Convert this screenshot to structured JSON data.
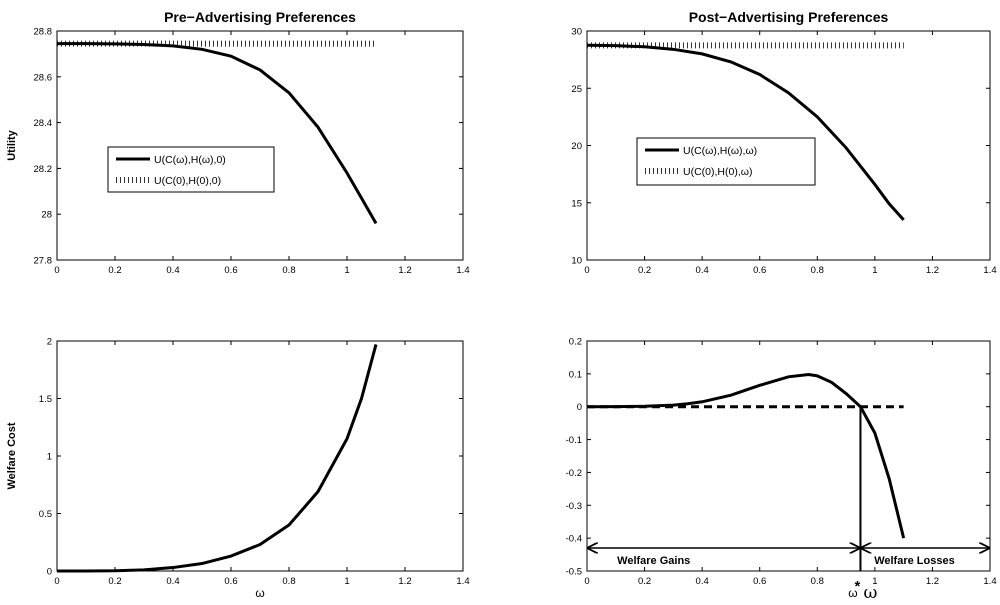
{
  "chart_data": [
    {
      "id": "p1",
      "type": "line",
      "title": "Pre−Advertising Preferences",
      "xlabel": "",
      "ylabel": "Utility",
      "xlim": [
        0,
        1.4
      ],
      "ylim": [
        27.8,
        28.8
      ],
      "xticks": [
        "0",
        "0.2",
        "0.4",
        "0.6",
        "0.8",
        "1",
        "1.2",
        "1.4"
      ],
      "yticks": [
        "27.8",
        "28",
        "28.2",
        "28.4",
        "28.6",
        "28.8"
      ],
      "grid": false,
      "legend_placement": "center-left",
      "series": [
        {
          "name": "U(C(ω),H(ω),0)",
          "style": "solid",
          "x": [
            0,
            0.1,
            0.2,
            0.3,
            0.4,
            0.5,
            0.6,
            0.7,
            0.8,
            0.9,
            1.0,
            1.05,
            1.1
          ],
          "y": [
            28.745,
            28.745,
            28.744,
            28.741,
            28.735,
            28.72,
            28.69,
            28.63,
            28.53,
            28.38,
            28.18,
            28.07,
            27.96
          ]
        },
        {
          "name": "U(C(0),H(0),0)",
          "style": "dotted",
          "x": [
            0,
            1.1
          ],
          "y": [
            28.745,
            28.745
          ]
        }
      ]
    },
    {
      "id": "p2",
      "type": "line",
      "title": "Post−Advertising Preferences",
      "xlabel": "",
      "ylabel": "",
      "xlim": [
        0,
        1.4
      ],
      "ylim": [
        10,
        30
      ],
      "xticks": [
        "0",
        "0.2",
        "0.4",
        "0.6",
        "0.8",
        "1",
        "1.2",
        "1.4"
      ],
      "yticks": [
        "10",
        "15",
        "20",
        "25",
        "30"
      ],
      "grid": false,
      "legend_placement": "center-left",
      "series": [
        {
          "name": "U(C(ω),H(ω),ω)",
          "style": "solid",
          "x": [
            0,
            0.1,
            0.2,
            0.3,
            0.4,
            0.5,
            0.6,
            0.7,
            0.8,
            0.9,
            1.0,
            1.05,
            1.1
          ],
          "y": [
            28.75,
            28.72,
            28.62,
            28.4,
            28.0,
            27.3,
            26.2,
            24.6,
            22.5,
            19.8,
            16.6,
            14.9,
            13.5
          ]
        },
        {
          "name": "U(C(0),H(0),ω)",
          "style": "dotted",
          "x": [
            0,
            1.1
          ],
          "y": [
            28.75,
            28.75
          ]
        }
      ]
    },
    {
      "id": "p3",
      "type": "line",
      "title": "",
      "xlabel": "ω",
      "ylabel": "Welfare Cost",
      "xlim": [
        0,
        1.4
      ],
      "ylim": [
        0,
        2
      ],
      "xticks": [
        "0",
        "0.2",
        "0.4",
        "0.6",
        "0.8",
        "1",
        "1.2",
        "1.4"
      ],
      "yticks": [
        "0",
        "0.5",
        "1",
        "1.5",
        "2"
      ],
      "grid": false,
      "series": [
        {
          "style": "solid",
          "x": [
            0,
            0.1,
            0.2,
            0.3,
            0.4,
            0.5,
            0.6,
            0.7,
            0.8,
            0.9,
            1.0,
            1.05,
            1.1
          ],
          "y": [
            0,
            0.0,
            0.002,
            0.01,
            0.03,
            0.065,
            0.13,
            0.23,
            0.4,
            0.69,
            1.15,
            1.5,
            1.97
          ]
        }
      ]
    },
    {
      "id": "p4",
      "type": "line",
      "title": "",
      "xlabel": "ω",
      "ylabel": "",
      "xlim": [
        0,
        1.4
      ],
      "ylim": [
        -0.5,
        0.2
      ],
      "xticks": [
        "0",
        "0.2",
        "0.4",
        "0.6",
        "0.8",
        "1",
        "1.2",
        "1.4"
      ],
      "yticks": [
        "-0.5",
        "-0.4",
        "-0.3",
        "-0.2",
        "-0.1",
        "0",
        "0.1",
        "0.2"
      ],
      "grid": false,
      "series": [
        {
          "style": "solid",
          "x": [
            0,
            0.1,
            0.2,
            0.3,
            0.35,
            0.4,
            0.5,
            0.6,
            0.7,
            0.77,
            0.8,
            0.85,
            0.9,
            0.95,
            1.0,
            1.05,
            1.1
          ],
          "y": [
            0,
            0.0003,
            0.0015,
            0.005,
            0.009,
            0.015,
            0.035,
            0.065,
            0.091,
            0.098,
            0.094,
            0.074,
            0.04,
            0.0,
            -0.08,
            -0.22,
            -0.4
          ]
        },
        {
          "style": "dashed",
          "x": [
            0,
            1.1
          ],
          "y": [
            0,
            0
          ]
        }
      ],
      "annotations": {
        "vline_x": 0.95,
        "star_label": "*",
        "omega_label": "ω",
        "gains_label": "Welfare Gains",
        "losses_label": "Welfare Losses",
        "arrow_y": -0.43,
        "gains_range": [
          0,
          0.95
        ],
        "losses_range": [
          0.95,
          1.4
        ]
      }
    }
  ]
}
